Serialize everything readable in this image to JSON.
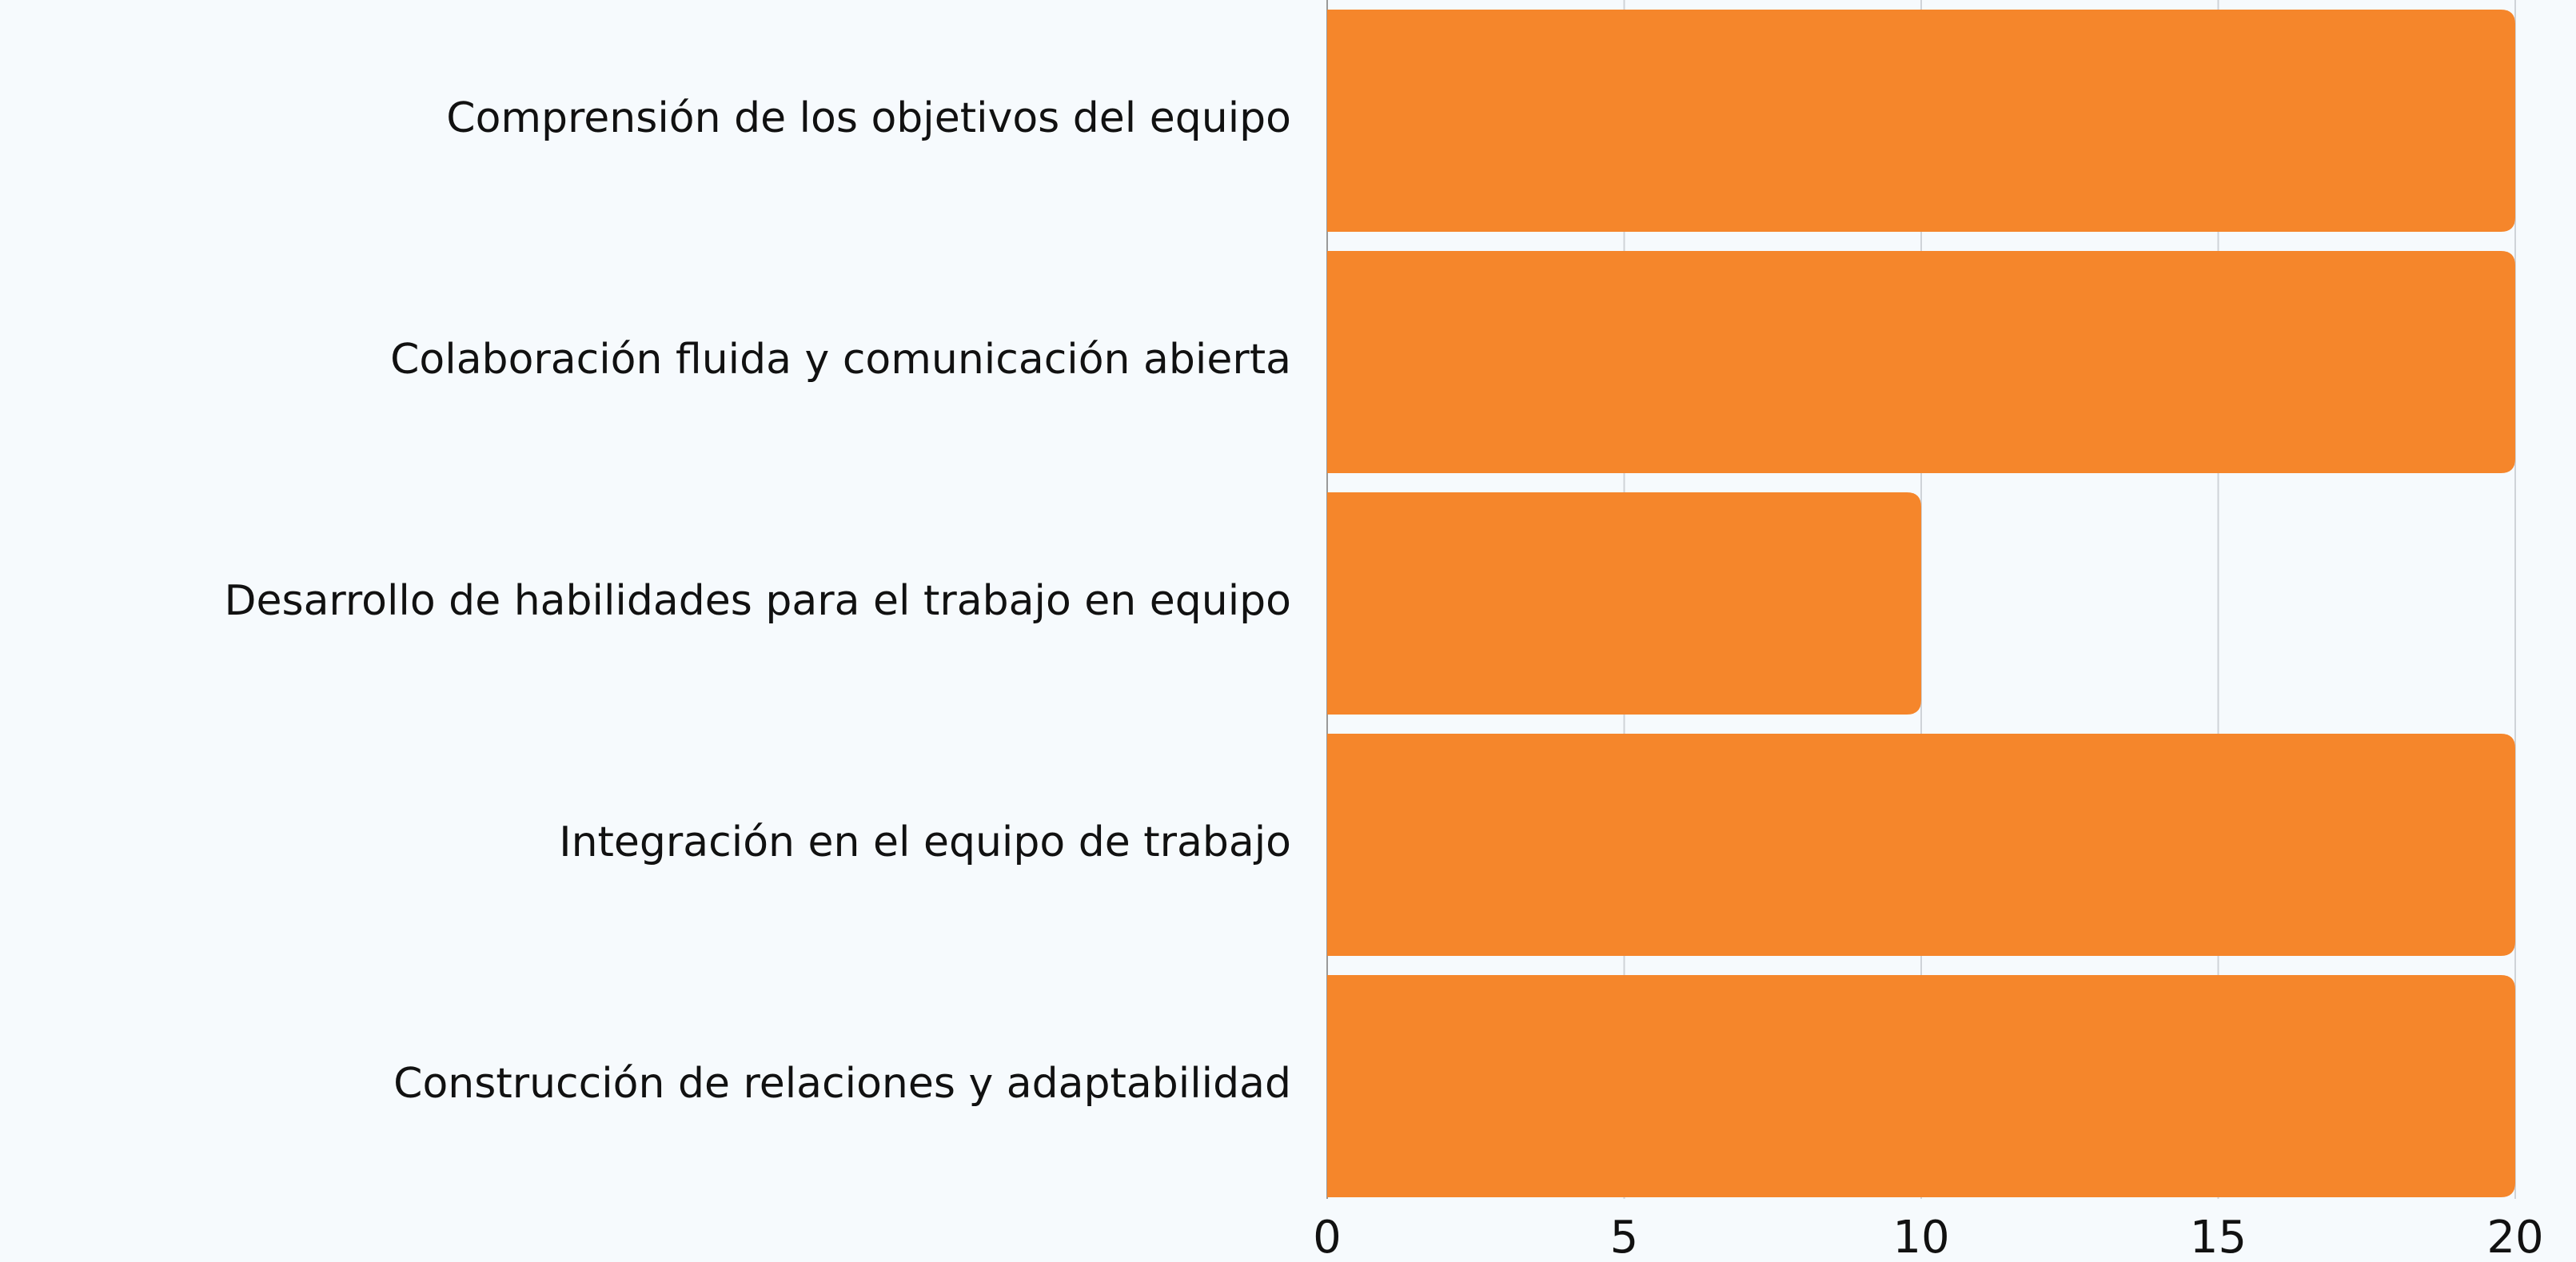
{
  "chart_data": {
    "type": "hbar",
    "categories": [
      "Comprensión de los objetivos del equipo",
      "Colaboración fluida y comunicación abierta",
      "Desarrollo de habilidades para el trabajo en equipo",
      "Integración en el equipo de trabajo",
      "Construcción de relaciones y adaptabilidad"
    ],
    "values": [
      20,
      20,
      10,
      20,
      20
    ],
    "color": "#f5862b",
    "xlim": [
      0,
      20
    ],
    "xticks": [
      0,
      5,
      10,
      15,
      20
    ],
    "grid": true
  }
}
